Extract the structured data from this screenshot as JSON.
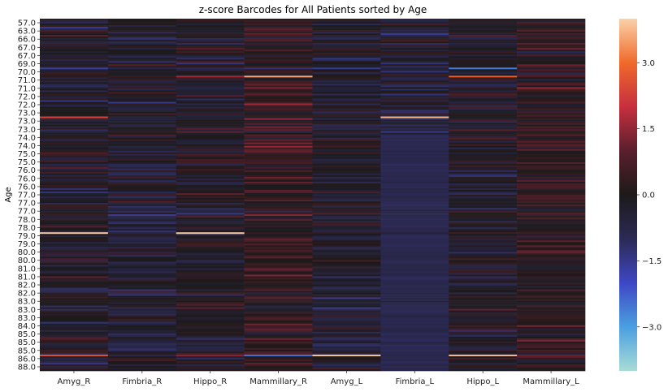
{
  "chart_data": {
    "type": "heatmap",
    "title": "z-score Barcodes for All Patients sorted by Age",
    "xlabel": "",
    "ylabel": "Age",
    "columns": [
      "Amyg_R",
      "Fimbria_R",
      "Hippo_R",
      "Mammillary_R",
      "Amyg_L",
      "Fimbria_L",
      "Hippo_L",
      "Mammillary_L"
    ],
    "y_tick_labels": [
      "57.0",
      "63.0",
      "66.0",
      "67.0",
      "67.0",
      "69.0",
      "70.0",
      "71.0",
      "71.0",
      "72.0",
      "72.0",
      "73.0",
      "73.0",
      "73.0",
      "74.0",
      "74.0",
      "75.0",
      "75.0",
      "76.0",
      "76.0",
      "76.0",
      "77.0",
      "77.0",
      "77.0",
      "78.0",
      "78.0",
      "79.0",
      "79.0",
      "80.0",
      "80.0",
      "81.0",
      "81.0",
      "82.0",
      "82.0",
      "83.0",
      "83.0",
      "83.0",
      "84.0",
      "85.0",
      "85.0",
      "85.0",
      "86.0",
      "88.0"
    ],
    "colorbar": {
      "ticks": [
        "3.0",
        "1.5",
        "0.0",
        "−1.5",
        "−3.0"
      ],
      "tick_values": [
        3.0,
        1.5,
        0.0,
        -1.5,
        -3.0
      ],
      "range": [
        -4.0,
        4.0
      ],
      "colormap": "icefire",
      "stops": [
        "#a8dcd6",
        "#4a9fe0",
        "#3e47c4",
        "#2c2a55",
        "#1c1a1a",
        "#5a1f2c",
        "#c72f3f",
        "#ef6a2b",
        "#fbd2a8"
      ]
    },
    "highlight_rows": [
      {
        "row": 6,
        "values": [
          -1.7,
          -0.8,
          -1.0,
          -1.3,
          -1.6,
          -0.5,
          -2.6,
          -0.4
        ]
      },
      {
        "row": 12,
        "values": [
          2.3,
          -0.6,
          -0.4,
          -0.3,
          -0.2,
          3.7,
          -0.1,
          0.2
        ]
      },
      {
        "row": 26,
        "values": [
          3.9,
          -0.7,
          3.9,
          0.4,
          0.3,
          -0.5,
          0.6,
          0.5
        ]
      },
      {
        "row": 7,
        "values": [
          0.2,
          0.4,
          1.6,
          3.6,
          0.1,
          -0.4,
          2.8,
          0.7
        ]
      },
      {
        "row": 41,
        "values": [
          2.6,
          -0.9,
          1.4,
          -2.5,
          3.9,
          -0.8,
          3.8,
          1.1
        ]
      }
    ]
  }
}
